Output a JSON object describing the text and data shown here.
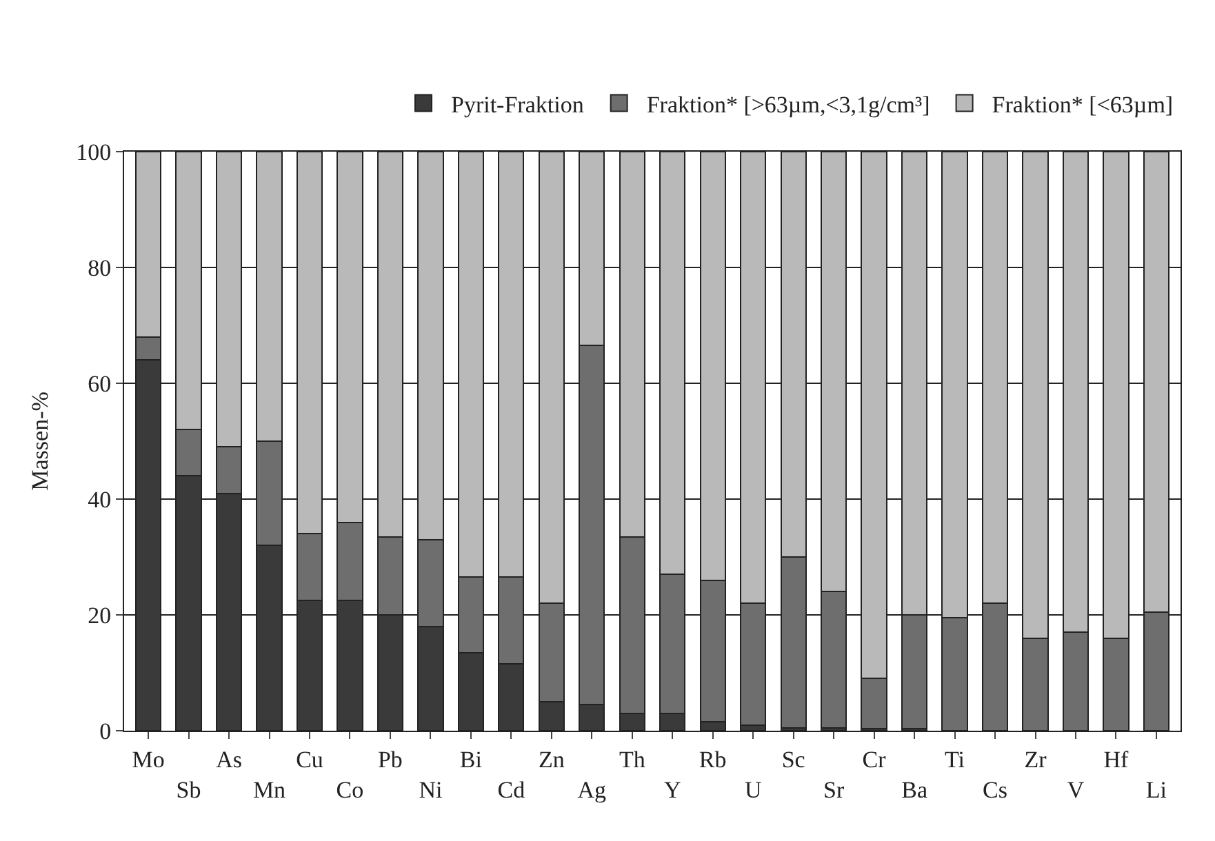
{
  "chart_data": {
    "type": "bar",
    "stacked": true,
    "ylabel": "Massen-%",
    "ylim": [
      0,
      100
    ],
    "yticks": [
      0,
      20,
      40,
      60,
      80,
      100
    ],
    "grid": "y",
    "legend": "top right",
    "categories": [
      "Mo",
      "Sb",
      "As",
      "Mn",
      "Cu",
      "Co",
      "Pb",
      "Ni",
      "Bi",
      "Cd",
      "Zn",
      "Ag",
      "Th",
      "Y",
      "Rb",
      "U",
      "Sc",
      "Sr",
      "Cr",
      "Ba",
      "Ti",
      "Cs",
      "Zr",
      "V",
      "Hf",
      "Li"
    ],
    "series": [
      {
        "name": "Pyrit-Fraktion",
        "color": "#3a3a3a",
        "values": [
          64,
          44,
          41,
          32,
          22.5,
          22.5,
          20,
          18,
          13.5,
          11.5,
          5,
          4.5,
          3,
          3,
          1.5,
          1,
          0.5,
          0.5,
          0.3,
          0.3,
          null,
          null,
          null,
          null,
          null,
          null
        ]
      },
      {
        "name": "Fraktion* [>63µm,<3,1g/cm³]",
        "color": "#6e6e6e",
        "values": [
          4,
          8,
          8,
          18,
          11.5,
          13.5,
          13.5,
          15,
          13,
          15,
          17,
          62,
          30.5,
          24,
          24.5,
          21,
          29.5,
          23.5,
          8.7,
          19.7,
          19.5,
          22,
          16,
          17,
          16,
          20.5
        ]
      },
      {
        "name": "Fraktion* [<63µm]",
        "color": "#b9b9b9",
        "values": [
          32,
          48,
          51,
          50,
          66,
          64,
          66.5,
          67,
          73.5,
          73.5,
          78,
          33.5,
          66.5,
          73,
          74,
          78,
          70,
          76,
          91,
          80,
          80.5,
          78,
          84,
          83,
          84,
          79.5
        ]
      }
    ]
  }
}
